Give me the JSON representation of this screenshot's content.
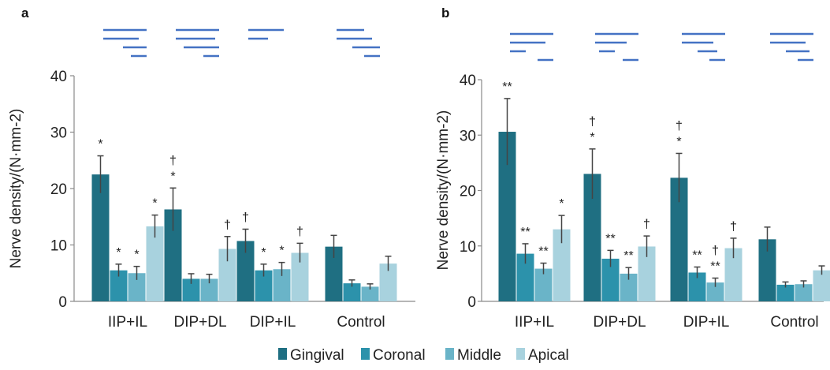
{
  "colors": {
    "background": "#ffffff",
    "axis": "#8a8a8a",
    "error_bar": "#444444",
    "schematic": "#4472c4",
    "series": [
      "#1f6f82",
      "#2c92ab",
      "#6ab4c8",
      "#a8d2de"
    ]
  },
  "legend": {
    "placement": "bottom-center",
    "items": [
      "Gingival",
      "Coronal",
      "Middle",
      "Apical"
    ]
  },
  "chart_data": [
    {
      "panel_label": "a",
      "type": "bar",
      "ylabel": "Nerve density/(N·mm-2)",
      "ylim": [
        0,
        40
      ],
      "yticks": [
        0,
        10,
        20,
        30,
        40
      ],
      "grid": false,
      "categories": [
        "IIP+IL",
        "DIP+DL",
        "DIP+IL",
        "Control"
      ],
      "series": [
        {
          "name": "Gingival",
          "values": [
            22.5,
            16.3,
            10.7,
            9.7
          ],
          "errors": [
            3.3,
            3.8,
            2.1,
            2.0
          ]
        },
        {
          "name": "Coronal",
          "values": [
            5.5,
            4.0,
            5.5,
            3.2
          ],
          "errors": [
            1.1,
            0.9,
            1.1,
            0.6
          ]
        },
        {
          "name": "Middle",
          "values": [
            5.0,
            4.0,
            5.7,
            2.6
          ],
          "errors": [
            1.2,
            0.8,
            1.2,
            0.5
          ]
        },
        {
          "name": "Apical",
          "values": [
            13.3,
            9.3,
            8.6,
            6.7
          ],
          "errors": [
            2.0,
            2.2,
            1.7,
            1.3
          ]
        }
      ],
      "annotations": [
        [
          "*",
          "*",
          "*",
          "*"
        ],
        [
          "†\n*",
          "",
          "",
          "†"
        ],
        [
          "†",
          "*",
          "*",
          "†"
        ],
        [
          "",
          "",
          "",
          ""
        ]
      ],
      "schematics": [
        [
          [
            1,
            56
          ],
          [
            1,
            46
          ],
          [
            26,
            56
          ],
          [
            36,
            56
          ]
        ],
        [
          [
            1,
            56
          ],
          [
            1,
            51
          ],
          [
            11,
            56
          ],
          [
            36,
            56
          ]
        ],
        [
          [
            1,
            46
          ],
          [
            1,
            26
          ],
          [
            0,
            0
          ],
          [
            0,
            0
          ]
        ],
        [
          [
            1,
            36
          ],
          [
            1,
            46
          ],
          [
            21,
            56
          ],
          [
            36,
            56
          ]
        ]
      ]
    },
    {
      "panel_label": "b",
      "type": "bar",
      "ylabel": "Nerve density/(N·mm-2)",
      "ylim": [
        0,
        40
      ],
      "yticks": [
        0,
        10,
        20,
        30,
        40
      ],
      "grid": false,
      "categories": [
        "IIP+IL",
        "DIP+DL",
        "DIP+IL",
        "Control"
      ],
      "series": [
        {
          "name": "Gingival",
          "values": [
            30.6,
            23.0,
            22.3,
            11.2
          ],
          "errors": [
            6.0,
            4.5,
            4.4,
            2.2
          ]
        },
        {
          "name": "Coronal",
          "values": [
            8.6,
            7.7,
            5.2,
            3.0
          ],
          "errors": [
            1.8,
            1.5,
            1.0,
            0.5
          ]
        },
        {
          "name": "Middle",
          "values": [
            5.9,
            5.0,
            3.4,
            3.1
          ],
          "errors": [
            1.0,
            1.1,
            0.8,
            0.6
          ]
        },
        {
          "name": "Apical",
          "values": [
            13.0,
            9.9,
            9.6,
            5.6
          ],
          "errors": [
            2.5,
            1.9,
            1.8,
            0.8
          ]
        }
      ],
      "annotations": [
        [
          "**",
          "**",
          "**",
          "*"
        ],
        [
          "†\n*",
          "**",
          "**",
          "†"
        ],
        [
          "†\n*",
          "**",
          "†\n**",
          "†"
        ],
        [
          "",
          "",
          "",
          ""
        ]
      ],
      "schematics": [
        [
          [
            1,
            56
          ],
          [
            1,
            46
          ],
          [
            1,
            21
          ],
          [
            36,
            56
          ]
        ],
        [
          [
            1,
            56
          ],
          [
            1,
            41
          ],
          [
            6,
            26
          ],
          [
            36,
            56
          ]
        ],
        [
          [
            1,
            56
          ],
          [
            1,
            41
          ],
          [
            21,
            46
          ],
          [
            36,
            56
          ]
        ],
        [
          [
            1,
            56
          ],
          [
            1,
            46
          ],
          [
            21,
            51
          ],
          [
            36,
            56
          ]
        ]
      ]
    }
  ]
}
